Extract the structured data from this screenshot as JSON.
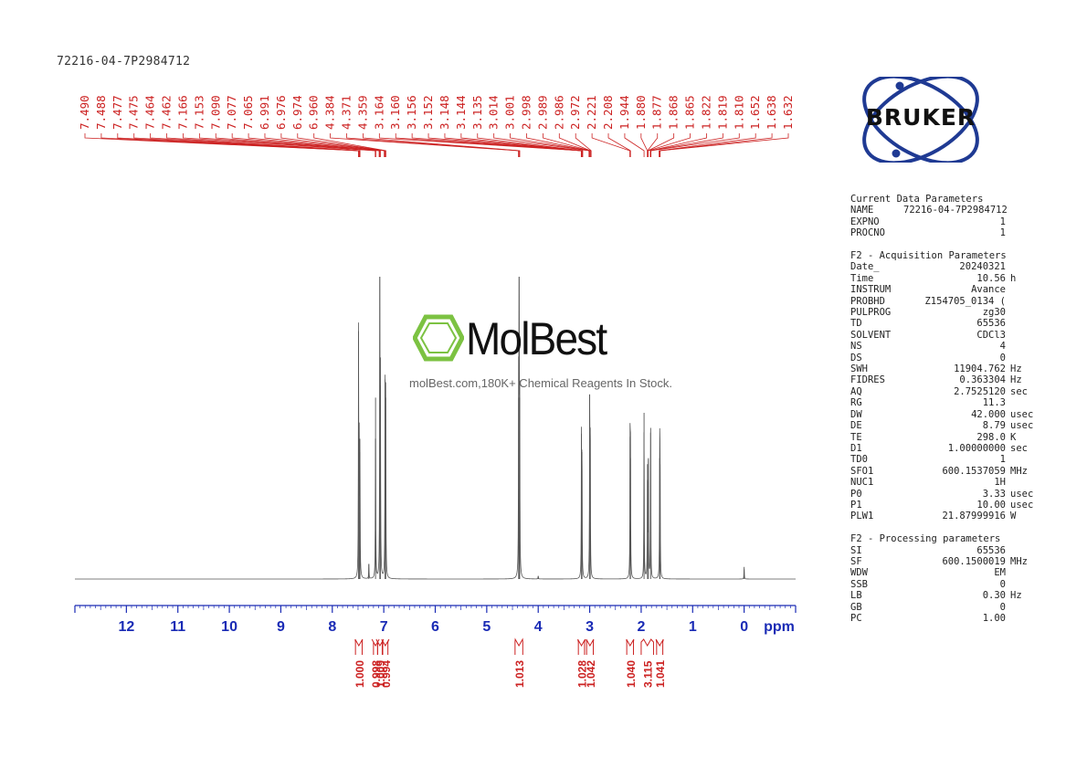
{
  "sample_id": "72216-04-7P2984712",
  "brand": {
    "logo_text": "BRUKER",
    "logo_color": "#1f3a93"
  },
  "watermark": {
    "name": "MolBest",
    "tagline": "molBest.com,180K+ Chemical Reagents In Stock.",
    "color": "#7cc242"
  },
  "parameters": {
    "current": {
      "title": "Current Data Parameters",
      "rows": [
        {
          "k": "NAME",
          "v": "72216-04-7P2984712",
          "u": ""
        },
        {
          "k": "EXPNO",
          "v": "1",
          "u": ""
        },
        {
          "k": "PROCNO",
          "v": "1",
          "u": ""
        }
      ]
    },
    "acquisition": {
      "title": "F2 - Acquisition Parameters",
      "rows": [
        {
          "k": "Date_",
          "v": "20240321",
          "u": ""
        },
        {
          "k": "Time",
          "v": "10.56",
          "u": "h"
        },
        {
          "k": "INSTRUM",
          "v": "Avance",
          "u": ""
        },
        {
          "k": "PROBHD",
          "v": "Z154705_0134 (",
          "u": ""
        },
        {
          "k": "PULPROG",
          "v": "zg30",
          "u": ""
        },
        {
          "k": "TD",
          "v": "65536",
          "u": ""
        },
        {
          "k": "SOLVENT",
          "v": "CDCl3",
          "u": ""
        },
        {
          "k": "NS",
          "v": "4",
          "u": ""
        },
        {
          "k": "DS",
          "v": "0",
          "u": ""
        },
        {
          "k": "SWH",
          "v": "11904.762",
          "u": "Hz"
        },
        {
          "k": "FIDRES",
          "v": "0.363304",
          "u": "Hz"
        },
        {
          "k": "AQ",
          "v": "2.7525120",
          "u": "sec"
        },
        {
          "k": "RG",
          "v": "11.3",
          "u": ""
        },
        {
          "k": "DW",
          "v": "42.000",
          "u": "usec"
        },
        {
          "k": "DE",
          "v": "8.79",
          "u": "usec"
        },
        {
          "k": "TE",
          "v": "298.0",
          "u": "K"
        },
        {
          "k": "D1",
          "v": "1.00000000",
          "u": "sec"
        },
        {
          "k": "TD0",
          "v": "1",
          "u": ""
        },
        {
          "k": "SFO1",
          "v": "600.1537059",
          "u": "MHz"
        },
        {
          "k": "NUC1",
          "v": "1H",
          "u": ""
        },
        {
          "k": "P0",
          "v": "3.33",
          "u": "usec"
        },
        {
          "k": "P1",
          "v": "10.00",
          "u": "usec"
        },
        {
          "k": "PLW1",
          "v": "21.87999916",
          "u": "W"
        }
      ]
    },
    "processing": {
      "title": "F2 - Processing parameters",
      "rows": [
        {
          "k": "SI",
          "v": "65536",
          "u": ""
        },
        {
          "k": "SF",
          "v": "600.1500019",
          "u": "MHz"
        },
        {
          "k": "WDW",
          "v": "EM",
          "u": ""
        },
        {
          "k": "SSB",
          "v": "0",
          "u": ""
        },
        {
          "k": "LB",
          "v": "0.30",
          "u": "Hz"
        },
        {
          "k": "GB",
          "v": "0",
          "u": ""
        },
        {
          "k": "PC",
          "v": "1.00",
          "u": ""
        }
      ]
    }
  },
  "chart_data": {
    "type": "line",
    "xlabel": "ppm",
    "xlim": [
      13.0,
      -1.0
    ],
    "x_ticks": [
      12,
      11,
      10,
      9,
      8,
      7,
      6,
      5,
      4,
      3,
      2,
      1,
      0
    ],
    "x_reversed": true,
    "color_spectrum": "#555555",
    "color_annotation": "#cc2222",
    "color_axis": "#1a2bb5",
    "peak_labels": [
      "7.490",
      "7.488",
      "7.477",
      "7.475",
      "7.464",
      "7.462",
      "7.166",
      "7.153",
      "7.090",
      "7.077",
      "7.065",
      "6.991",
      "6.976",
      "6.974",
      "6.960",
      "4.384",
      "4.371",
      "4.359",
      "3.164",
      "3.160",
      "3.156",
      "3.152",
      "3.148",
      "3.144",
      "3.135",
      "3.014",
      "3.001",
      "2.998",
      "2.989",
      "2.986",
      "2.972",
      "2.221",
      "2.208",
      "1.944",
      "1.880",
      "1.877",
      "1.868",
      "1.865",
      "1.822",
      "1.819",
      "1.810",
      "1.652",
      "1.638",
      "1.632"
    ],
    "peaks": [
      {
        "ppm": 7.49,
        "height": 0.82
      },
      {
        "ppm": 7.476,
        "height": 0.45
      },
      {
        "ppm": 7.463,
        "height": 0.42
      },
      {
        "ppm": 7.16,
        "height": 0.6
      },
      {
        "ppm": 7.077,
        "height": 1.0
      },
      {
        "ppm": 7.065,
        "height": 0.64
      },
      {
        "ppm": 6.975,
        "height": 0.66
      },
      {
        "ppm": 6.962,
        "height": 0.6
      },
      {
        "ppm": 7.29,
        "height": 0.05
      },
      {
        "ppm": 4.371,
        "height": 1.0
      },
      {
        "ppm": 4.38,
        "height": 0.6
      },
      {
        "ppm": 4.36,
        "height": 0.6
      },
      {
        "ppm": 4.0,
        "height": 0.01
      },
      {
        "ppm": 3.16,
        "height": 0.48
      },
      {
        "ppm": 3.15,
        "height": 0.42
      },
      {
        "ppm": 3.0,
        "height": 0.61
      },
      {
        "ppm": 2.99,
        "height": 0.5
      },
      {
        "ppm": 2.215,
        "height": 0.47
      },
      {
        "ppm": 2.208,
        "height": 0.4
      },
      {
        "ppm": 1.944,
        "height": 0.55
      },
      {
        "ppm": 1.877,
        "height": 0.38
      },
      {
        "ppm": 1.86,
        "height": 0.4
      },
      {
        "ppm": 1.816,
        "height": 0.5
      },
      {
        "ppm": 1.64,
        "height": 0.4
      },
      {
        "ppm": 1.633,
        "height": 0.38
      },
      {
        "ppm": 0.0,
        "height": 0.04
      }
    ],
    "integrals": [
      {
        "label": "1.000",
        "from": 7.55,
        "to": 7.42
      },
      {
        "label": "0.998",
        "from": 7.2,
        "to": 7.12
      },
      {
        "label": "1.009",
        "from": 7.12,
        "to": 7.03
      },
      {
        "label": "0.994",
        "from": 7.02,
        "to": 6.92
      },
      {
        "label": "1.013",
        "from": 4.45,
        "to": 4.3
      },
      {
        "label": "1.028",
        "from": 3.22,
        "to": 3.1
      },
      {
        "label": "1.042",
        "from": 3.06,
        "to": 2.93
      },
      {
        "label": "1.040",
        "from": 2.28,
        "to": 2.15
      },
      {
        "label": "3.115",
        "from": 2.0,
        "to": 1.76
      },
      {
        "label": "1.041",
        "from": 1.7,
        "to": 1.58
      }
    ]
  }
}
